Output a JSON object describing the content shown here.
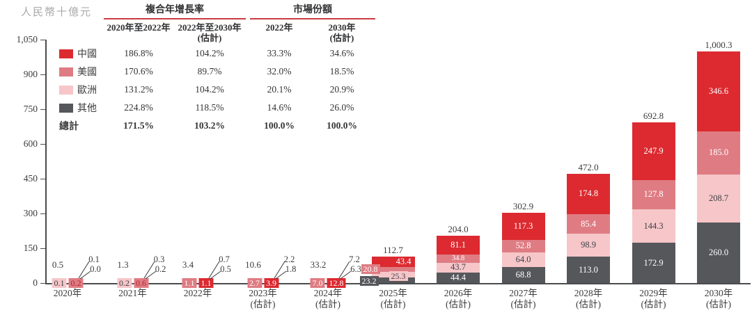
{
  "unit_label": "人民幣十億元",
  "colors": {
    "china_red": "#dc2a30",
    "us_pink": "#df7c83",
    "europe_lightpink": "#f6c6c9",
    "others_gray": "#56575b",
    "table_rule_red": "#cb3a40",
    "axis_gray": "#4a4b4e",
    "unit_gray": "#a9a9ab"
  },
  "table": {
    "groups": [
      {
        "label": "複合年增長率"
      },
      {
        "label": "市場份額"
      }
    ],
    "columns": [
      {
        "l1": "2020年至2022年",
        "l2": ""
      },
      {
        "l1": "2022年至2030年",
        "l2": "(估計)"
      },
      {
        "l1": "2022年",
        "l2": ""
      },
      {
        "l1": "2030年",
        "l2": "(估計)"
      }
    ],
    "rows": [
      {
        "name": "中國",
        "series": "中國",
        "values": [
          "186.8%",
          "104.2%",
          "33.3%",
          "34.6%"
        ]
      },
      {
        "name": "美國",
        "series": "美國",
        "values": [
          "170.6%",
          "89.7%",
          "32.0%",
          "18.5%"
        ]
      },
      {
        "name": "歐洲",
        "series": "歐洲",
        "values": [
          "131.2%",
          "104.2%",
          "20.1%",
          "20.9%"
        ]
      },
      {
        "name": "其他",
        "series": "其他",
        "values": [
          "224.8%",
          "118.5%",
          "14.6%",
          "26.0%"
        ]
      }
    ],
    "total_row": {
      "name": "總計",
      "values": [
        "171.5%",
        "103.2%",
        "100.0%",
        "100.0%"
      ]
    }
  },
  "chart_data": {
    "type": "bar",
    "stacked": true,
    "ylabel": "人民幣十億元",
    "ylim": [
      0,
      1050
    ],
    "yticks": [
      "0",
      "150",
      "300",
      "450",
      "600",
      "750",
      "900",
      "1,050"
    ],
    "grid": false,
    "legend_position": "top-left",
    "categories": [
      {
        "label": "2020年",
        "sub": ""
      },
      {
        "label": "2021年",
        "sub": ""
      },
      {
        "label": "2022年",
        "sub": ""
      },
      {
        "label": "2023年",
        "sub": "(估計)"
      },
      {
        "label": "2024年",
        "sub": "(估計)"
      },
      {
        "label": "2025年",
        "sub": "(估計)"
      },
      {
        "label": "2026年",
        "sub": "(估計)"
      },
      {
        "label": "2027年",
        "sub": "(估計)"
      },
      {
        "label": "2028年",
        "sub": "(估計)"
      },
      {
        "label": "2029年",
        "sub": "(估計)"
      },
      {
        "label": "2030年",
        "sub": "(估計)"
      }
    ],
    "series_order_bottom_to_top": [
      "其他",
      "歐洲",
      "美國",
      "中國"
    ],
    "series": [
      {
        "name": "中國",
        "color": "#dc2a30",
        "values": [
          0.1,
          0.3,
          1.1,
          3.9,
          12.8,
          43.4,
          81.1,
          117.3,
          174.8,
          247.9,
          346.6
        ]
      },
      {
        "name": "美國",
        "color": "#df7c83",
        "values": [
          0.2,
          0.6,
          1.1,
          2.7,
          7.0,
          20.8,
          34.8,
          52.8,
          85.4,
          127.8,
          185.0
        ]
      },
      {
        "name": "歐洲",
        "color": "#f6c6c9",
        "values": [
          0.1,
          0.2,
          0.7,
          2.2,
          7.2,
          25.3,
          43.7,
          64.0,
          98.9,
          144.3,
          208.7
        ]
      },
      {
        "name": "其他",
        "color": "#56575b",
        "values": [
          0.0,
          0.2,
          0.5,
          1.8,
          6.3,
          23.2,
          44.4,
          68.8,
          113.0,
          172.9,
          260.0
        ]
      }
    ],
    "totals": [
      "0.5",
      "1.3",
      "3.4",
      "10.6",
      "33.2",
      "112.7",
      "204.0",
      "302.9",
      "472.0",
      "692.8",
      "1,000.3"
    ],
    "group_label_layout": [
      {
        "mode": "tags",
        "tags": [
          {
            "s": "歐洲"
          },
          {
            "s": "美國",
            "tc": "#b3262a"
          }
        ],
        "leaders": [
          "中國",
          "其他"
        ]
      },
      {
        "mode": "tags",
        "tags": [
          {
            "s": "歐洲"
          },
          {
            "s": "美國",
            "tc": "#b3262a"
          }
        ],
        "leaders": [
          "中國",
          "其他"
        ]
      },
      {
        "mode": "tags",
        "tags": [
          {
            "s": "美國"
          },
          {
            "s": "中國"
          }
        ],
        "leaders": [
          "歐洲",
          "其他"
        ]
      },
      {
        "mode": "tags",
        "tags": [
          {
            "s": "美國"
          },
          {
            "s": "中國"
          }
        ],
        "leaders": [
          "歐洲",
          "其他"
        ]
      },
      {
        "mode": "tags",
        "tags": [
          {
            "s": "美國"
          },
          {
            "s": "中國"
          }
        ],
        "leaders": [
          "歐洲",
          "其他"
        ]
      },
      {
        "mode": "stacked",
        "labels": {
          "其他": "chip-left-low",
          "歐洲": "chip-right",
          "美國": "chip-left",
          "中國": "inside-right"
        }
      },
      {
        "mode": "stacked",
        "labels": {
          "其他": "inside",
          "歐洲": "inside",
          "美國": "inside",
          "中國": "inside"
        }
      },
      {
        "mode": "stacked",
        "labels": {
          "其他": "inside",
          "歐洲": "inside",
          "美國": "inside",
          "中國": "inside"
        }
      },
      {
        "mode": "stacked",
        "labels": {
          "其他": "inside",
          "歐洲": "inside",
          "美國": "inside",
          "中國": "inside"
        }
      },
      {
        "mode": "stacked",
        "labels": {
          "其他": "inside",
          "歐洲": "inside",
          "美國": "inside",
          "中國": "inside"
        }
      },
      {
        "mode": "stacked",
        "labels": {
          "其他": "inside",
          "歐洲": "inside",
          "美國": "inside",
          "中國": "inside"
        }
      }
    ]
  }
}
